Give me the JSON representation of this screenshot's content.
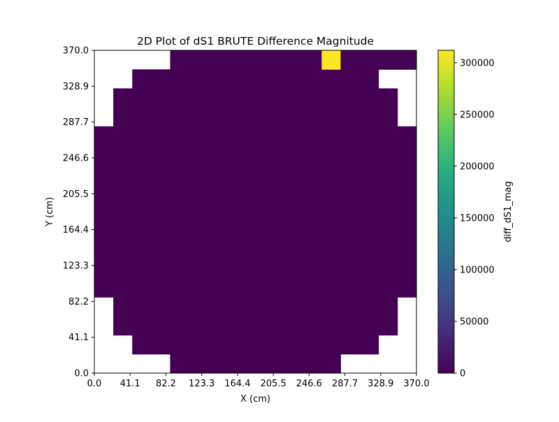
{
  "chart_data": {
    "type": "heatmap",
    "title": "2D Plot of dS1 BRUTE Difference Magnitude",
    "xlabel": "X (cm)",
    "ylabel": "Y (cm)",
    "xlim": [
      0,
      370
    ],
    "ylim": [
      0,
      370
    ],
    "x_ticks": [
      "0.0",
      "41.1",
      "82.2",
      "123.3",
      "164.4",
      "205.5",
      "246.6",
      "287.7",
      "328.9",
      "370.0"
    ],
    "y_ticks": [
      "0.0",
      "41.1",
      "82.2",
      "123.3",
      "164.4",
      "205.5",
      "246.6",
      "287.7",
      "328.9",
      "370.0"
    ],
    "grid": false,
    "colormap": "viridis",
    "colorbar": {
      "label": "diff_dS1_mag",
      "range": [
        0,
        312000
      ],
      "ticks": [
        "0",
        "50000",
        "100000",
        "150000",
        "200000",
        "250000",
        "300000"
      ],
      "tick_values": [
        0,
        50000,
        100000,
        150000,
        200000,
        250000,
        300000
      ]
    },
    "grid_size": [
      17,
      17
    ],
    "cell_size_cm": 21.76,
    "background_value": 0,
    "row_extents": [
      {
        "row": 0,
        "col_start": 4,
        "col_end": 12
      },
      {
        "row": 1,
        "col_start": 2,
        "col_end": 14
      },
      {
        "row": 2,
        "col_start": 1,
        "col_end": 15
      },
      {
        "row": 3,
        "col_start": 1,
        "col_end": 15
      },
      {
        "row": 4,
        "col_start": 0,
        "col_end": 16
      },
      {
        "row": 5,
        "col_start": 0,
        "col_end": 16
      },
      {
        "row": 6,
        "col_start": 0,
        "col_end": 16
      },
      {
        "row": 7,
        "col_start": 0,
        "col_end": 16
      },
      {
        "row": 8,
        "col_start": 0,
        "col_end": 16
      },
      {
        "row": 9,
        "col_start": 0,
        "col_end": 16
      },
      {
        "row": 10,
        "col_start": 0,
        "col_end": 16
      },
      {
        "row": 11,
        "col_start": 0,
        "col_end": 16
      },
      {
        "row": 12,
        "col_start": 0,
        "col_end": 16
      },
      {
        "row": 13,
        "col_start": 1,
        "col_end": 15
      },
      {
        "row": 14,
        "col_start": 1,
        "col_end": 15
      },
      {
        "row": 15,
        "col_start": 2,
        "col_end": 14
      },
      {
        "row": 16,
        "col_start": 4,
        "col_end": 16
      }
    ],
    "hot_cells": [
      {
        "row": 16,
        "col": 12,
        "value": 312000
      }
    ]
  }
}
